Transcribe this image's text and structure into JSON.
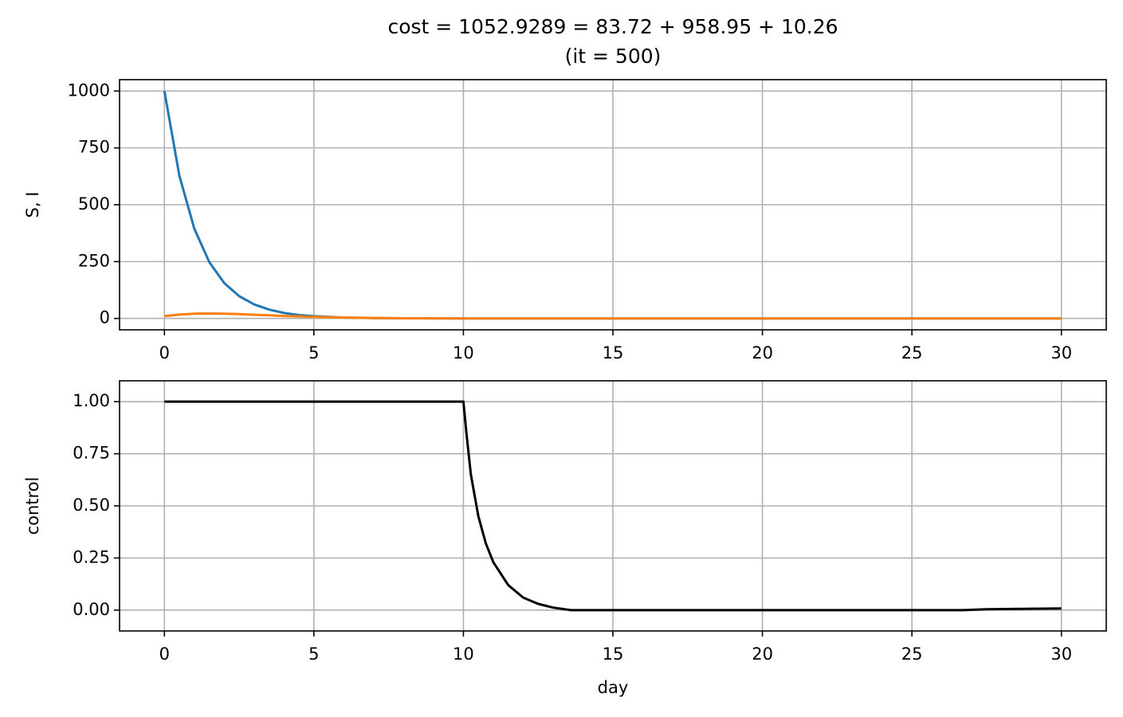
{
  "chart_data": [
    {
      "type": "line",
      "title": "cost = 1052.9289 = 83.72 + 958.95 + 10.26",
      "subtitle": "(it = 500)",
      "ylabel": "S, I",
      "x": [
        0,
        0.5,
        1,
        1.5,
        2,
        2.5,
        3,
        3.5,
        4,
        4.5,
        5,
        6,
        7,
        8,
        10,
        15,
        20,
        25,
        30
      ],
      "series": [
        {
          "color": "#1f77b4",
          "values": [
            1000,
            628,
            395,
            248,
            156,
            98,
            62,
            39,
            24,
            15,
            10,
            4,
            1.5,
            0.6,
            0,
            0,
            0,
            0,
            0
          ]
        },
        {
          "color": "#ff7f0e",
          "values": [
            10,
            17,
            21,
            22,
            21,
            19,
            16,
            14,
            11,
            9,
            7,
            4,
            2,
            1,
            0,
            0,
            0,
            0,
            0
          ]
        }
      ],
      "xlim": [
        -1.5,
        31.5
      ],
      "xticks": [
        0,
        5,
        10,
        15,
        20,
        25,
        30
      ],
      "ylim": [
        -50,
        1050
      ],
      "yticks": [
        0,
        250,
        500,
        750,
        1000
      ],
      "grid": true
    },
    {
      "type": "line",
      "xlabel": "day",
      "ylabel": "control",
      "x": [
        0,
        10,
        10.1,
        10.25,
        10.5,
        10.75,
        11,
        11.5,
        12,
        12.5,
        13,
        13.6,
        20,
        26.7,
        27.5,
        30
      ],
      "series": [
        {
          "color": "#000000",
          "values": [
            1,
            1,
            0.85,
            0.65,
            0.45,
            0.32,
            0.23,
            0.12,
            0.06,
            0.03,
            0.012,
            0,
            0,
            0,
            0.004,
            0.008
          ]
        }
      ],
      "xlim": [
        -1.5,
        31.5
      ],
      "xticks": [
        0,
        5,
        10,
        15,
        20,
        25,
        30
      ],
      "ylim": [
        -0.1,
        1.1
      ],
      "yticks": [
        {
          "value": 0,
          "label": "0.00"
        },
        {
          "value": 0.25,
          "label": "0.25"
        },
        {
          "value": 0.5,
          "label": "0.50"
        },
        {
          "value": 0.75,
          "label": "0.75"
        },
        {
          "value": 1,
          "label": "1.00"
        }
      ],
      "grid": true
    }
  ]
}
